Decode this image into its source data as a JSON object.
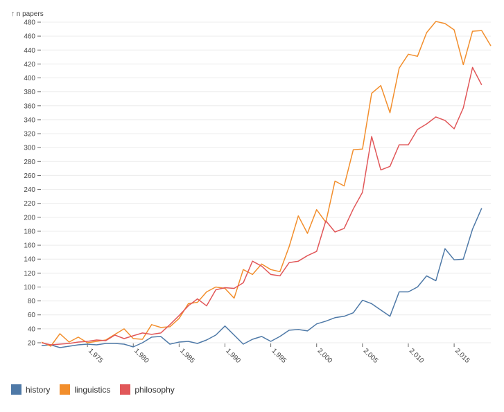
{
  "chart_data": {
    "type": "line",
    "title": "",
    "ylabel": "↑ n papers",
    "xlabel": "",
    "xlim": [
      1970,
      2019
    ],
    "ylim": [
      10,
      490
    ],
    "xticks": [
      1975,
      1980,
      1985,
      1990,
      1995,
      2000,
      2005,
      2010,
      2015
    ],
    "xtick_labels": [
      "1,975",
      "1,980",
      "1,985",
      "1,990",
      "1,995",
      "2,000",
      "2,005",
      "2,010",
      "2,015"
    ],
    "yticks": [
      20,
      40,
      60,
      80,
      100,
      120,
      140,
      160,
      180,
      200,
      220,
      240,
      260,
      280,
      300,
      320,
      340,
      360,
      380,
      400,
      420,
      440,
      460,
      480
    ],
    "grid": "horizontal",
    "legend_position": "bottom-left",
    "x": [
      1970,
      1971,
      1972,
      1973,
      1974,
      1975,
      1976,
      1977,
      1978,
      1979,
      1980,
      1981,
      1982,
      1983,
      1984,
      1985,
      1986,
      1987,
      1988,
      1989,
      1990,
      1991,
      1992,
      1993,
      1994,
      1995,
      1996,
      1997,
      1998,
      1999,
      2000,
      2001,
      2002,
      2003,
      2004,
      2005,
      2006,
      2007,
      2008,
      2009,
      2010,
      2011,
      2012,
      2013,
      2014,
      2015,
      2016,
      2017,
      2018,
      2019
    ],
    "series": [
      {
        "name": "history",
        "color": "#4e79a7",
        "values": [
          16,
          17,
          13,
          15,
          17,
          18,
          17,
          19,
          19,
          18,
          14,
          20,
          28,
          29,
          18,
          21,
          22,
          19,
          24,
          31,
          44,
          31,
          18,
          25,
          29,
          22,
          29,
          38,
          39,
          37,
          47,
          51,
          56,
          58,
          63,
          81,
          76,
          67,
          58,
          93,
          93,
          100,
          116,
          109,
          155,
          139,
          140,
          183,
          213,
          null
        ]
      },
      {
        "name": "linguistics",
        "color": "#f28e2c",
        "values": [
          21,
          15,
          33,
          21,
          28,
          20,
          22,
          24,
          32,
          40,
          26,
          25,
          46,
          42,
          43,
          55,
          76,
          78,
          93,
          100,
          98,
          84,
          125,
          118,
          133,
          125,
          122,
          158,
          202,
          177,
          211,
          193,
          252,
          245,
          297,
          298,
          378,
          389,
          350,
          414,
          434,
          431,
          465,
          481,
          478,
          469,
          419,
          467,
          468,
          446
        ]
      },
      {
        "name": "philosophy",
        "color": "#e15759",
        "values": [
          20,
          17,
          18,
          19,
          21,
          22,
          24,
          23,
          31,
          26,
          30,
          34,
          32,
          34,
          46,
          59,
          73,
          83,
          73,
          96,
          99,
          98,
          106,
          137,
          130,
          118,
          116,
          135,
          137,
          145,
          151,
          195,
          179,
          184,
          212,
          236,
          316,
          268,
          273,
          304,
          304,
          326,
          334,
          344,
          339,
          327,
          357,
          415,
          390,
          null
        ]
      }
    ]
  }
}
